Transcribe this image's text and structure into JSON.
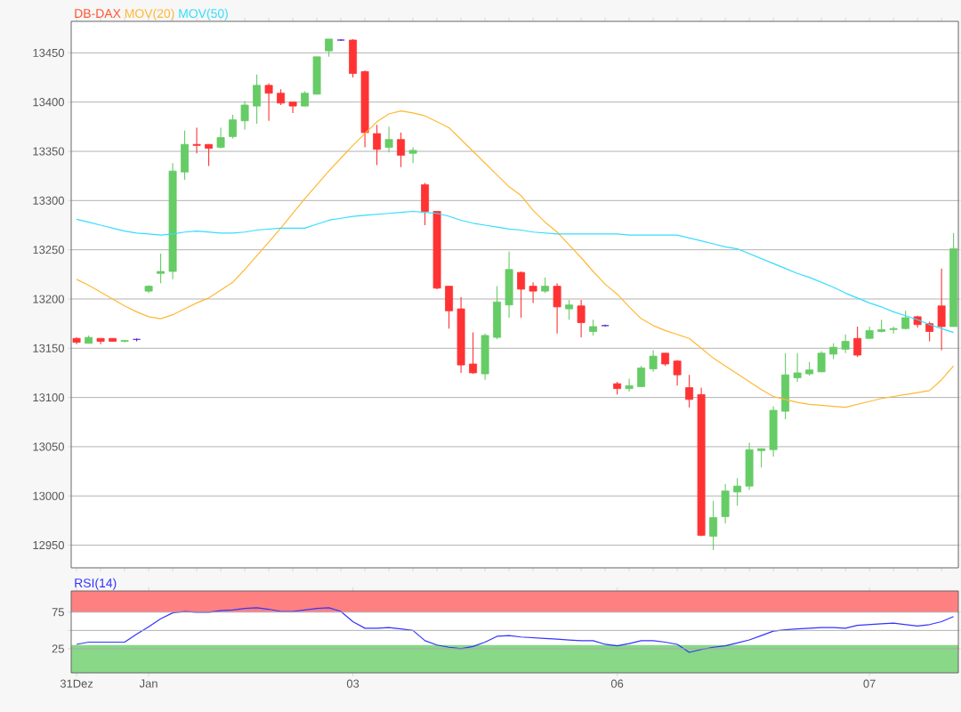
{
  "chart_data": [
    {
      "type": "candlestick",
      "legend": "top left",
      "grid": "y",
      "categories": [
        null,
        null,
        null,
        null,
        null,
        null,
        null,
        null,
        null,
        null,
        null,
        null,
        null,
        null,
        null,
        null,
        null,
        null,
        null,
        null,
        null,
        null,
        null,
        null,
        null,
        null,
        null,
        null,
        null,
        null,
        null,
        null,
        null,
        null,
        null,
        null,
        null,
        null,
        null,
        null,
        null,
        null,
        null,
        null,
        null,
        null,
        null,
        null,
        null,
        null,
        null,
        null,
        null,
        null,
        null,
        null,
        null,
        null,
        null,
        null,
        null,
        null,
        null,
        null,
        null,
        null,
        null,
        null,
        null,
        null,
        null,
        null,
        null,
        null
      ],
      "ylim": [
        12927,
        13482
      ],
      "yticks": [
        12950,
        13000,
        13050,
        13100,
        13150,
        13200,
        13250,
        13300,
        13350,
        13400,
        13450
      ],
      "series": [
        {
          "name": "DB-DAX",
          "type": "candlestick",
          "color": "#ff5533",
          "ohlc": [
            [
              13160,
              13161,
              13154,
              13156
            ],
            [
              13155,
              13163,
              13155,
              13161
            ],
            [
              13160,
              13160,
              13154,
              13157
            ],
            [
              13160,
              13160,
              13157,
              13157
            ],
            [
              13157,
              13158,
              13156,
              13158
            ],
            [
              13159,
              13160,
              13157,
              13159
            ],
            [
              13208,
              13214,
              13206,
              13213
            ],
            [
              13226,
              13246,
              13216,
              13228
            ],
            [
              13228,
              13338,
              13220,
              13330
            ],
            [
              13329,
              13371,
              13321,
              13357
            ],
            [
              13357,
              13374,
              13348,
              13356
            ],
            [
              13357,
              13357,
              13335,
              13353
            ],
            [
              13354,
              13374,
              13353,
              13364
            ],
            [
              13365,
              13387,
              13363,
              13382
            ],
            [
              13381,
              13401,
              13372,
              13397
            ],
            [
              13396,
              13428,
              13378,
              13417
            ],
            [
              13417,
              13419,
              13381,
              13409
            ],
            [
              13409,
              13413,
              13397,
              13399
            ],
            [
              13400,
              13400,
              13389,
              13396
            ],
            [
              13396,
              13411,
              13396,
              13409
            ],
            [
              13408,
              13446,
              13408,
              13446
            ],
            [
              13452,
              13464,
              13446,
              13464
            ],
            [
              13463,
              13464,
              13462,
              13463
            ],
            [
              13463,
              13464,
              13425,
              13429
            ],
            [
              13431,
              13432,
              13354,
              13369
            ],
            [
              13368,
              13377,
              13336,
              13352
            ],
            [
              13354,
              13375,
              13349,
              13362
            ],
            [
              13362,
              13369,
              13334,
              13346
            ],
            [
              13348,
              13354,
              13338,
              13351
            ],
            [
              13316,
              13318,
              13275,
              13289
            ],
            [
              13289,
              13289,
              13210,
              13211
            ],
            [
              13213,
              13213,
              13170,
              13188
            ],
            [
              13190,
              13202,
              13125,
              13133
            ],
            [
              13134,
              13166,
              13124,
              13125
            ],
            [
              13124,
              13165,
              13118,
              13163
            ],
            [
              13161,
              13213,
              13159,
              13197
            ],
            [
              13194,
              13248,
              13181,
              13230
            ],
            [
              13227,
              13228,
              13181,
              13210
            ],
            [
              13213,
              13217,
              13196,
              13208
            ],
            [
              13208,
              13222,
              13206,
              13213
            ],
            [
              13213,
              13216,
              13165,
              13192
            ],
            [
              13190,
              13199,
              13179,
              13194
            ],
            [
              13193,
              13199,
              13161,
              13176
            ],
            [
              13167,
              13179,
              13163,
              13172
            ],
            [
              13173,
              13174,
              13172,
              13173
            ],
            [
              13114,
              13116,
              13103,
              13109
            ],
            [
              13109,
              13119,
              13106,
              13112
            ],
            [
              13111,
              13132,
              13111,
              13130
            ],
            [
              13129,
              13148,
              13126,
              13142
            ],
            [
              13145,
              13145,
              13132,
              13134
            ],
            [
              13137,
              13138,
              13112,
              13123
            ],
            [
              13110,
              13123,
              13090,
              13098
            ],
            [
              13103,
              13110,
              12959,
              12960
            ],
            [
              12959,
              12995,
              12945,
              12978
            ],
            [
              12979,
              13012,
              12972,
              13005
            ],
            [
              13004,
              13018,
              12990,
              13010
            ],
            [
              13010,
              13054,
              13006,
              13047
            ],
            [
              13046,
              13048,
              13029,
              13048
            ],
            [
              13047,
              13091,
              13040,
              13087
            ],
            [
              13086,
              13145,
              13078,
              13123
            ],
            [
              13120,
              13145,
              13116,
              13125
            ],
            [
              13124,
              13136,
              13122,
              13128
            ],
            [
              13126,
              13147,
              13126,
              13145
            ],
            [
              13144,
              13155,
              13139,
              13151
            ],
            [
              13149,
              13164,
              13145,
              13157
            ],
            [
              13160,
              13172,
              13141,
              13143
            ],
            [
              13160,
              13172,
              13160,
              13168
            ],
            [
              13167,
              13179,
              13166,
              13169
            ],
            [
              13169,
              13172,
              13165,
              13170
            ],
            [
              13170,
              13188,
              13169,
              13181
            ],
            [
              13182,
              13183,
              13171,
              13174
            ],
            [
              13175,
              13177,
              13157,
              13167
            ],
            [
              13193,
              13231,
              13148,
              13172
            ],
            [
              13172,
              13267,
              13172,
              13251
            ]
          ],
          "colors": [
            "#ff3333",
            "#66cc66",
            "#ff3333",
            "#ff3333",
            "#66cc66",
            "#5522cc",
            "#66cc66",
            "#66cc66",
            "#66cc66",
            "#66cc66",
            "#ff3333",
            "#ff3333",
            "#66cc66",
            "#66cc66",
            "#66cc66",
            "#66cc66",
            "#ff3333",
            "#ff3333",
            "#ff3333",
            "#66cc66",
            "#66cc66",
            "#66cc66",
            "#5522cc",
            "#ff3333",
            "#ff3333",
            "#ff3333",
            "#66cc66",
            "#ff3333",
            "#66cc66",
            "#ff3333",
            "#ff3333",
            "#ff3333",
            "#ff3333",
            "#ff3333",
            "#66cc66",
            "#66cc66",
            "#66cc66",
            "#ff3333",
            "#ff3333",
            "#66cc66",
            "#ff3333",
            "#66cc66",
            "#ff3333",
            "#66cc66",
            "#5522cc",
            "#ff3333",
            "#66cc66",
            "#66cc66",
            "#66cc66",
            "#ff3333",
            "#ff3333",
            "#ff3333",
            "#ff3333",
            "#66cc66",
            "#66cc66",
            "#66cc66",
            "#66cc66",
            "#66cc66",
            "#66cc66",
            "#66cc66",
            "#66cc66",
            "#66cc66",
            "#66cc66",
            "#66cc66",
            "#66cc66",
            "#ff3333",
            "#66cc66",
            "#66cc66",
            "#66cc66",
            "#66cc66",
            "#ff3333",
            "#ff3333",
            "#ff3333",
            "#66cc66"
          ]
        },
        {
          "name": "MOV(20)",
          "type": "line",
          "color": "#ffb833",
          "values": [
            13220,
            13214,
            13207,
            13200,
            13193,
            13187,
            13182,
            13180,
            13184,
            13190,
            13196,
            13201,
            13209,
            13217,
            13230,
            13244,
            13258,
            13272,
            13287,
            13302,
            13316,
            13330,
            13343,
            13356,
            13368,
            13380,
            13388,
            13391,
            13389,
            13386,
            13380,
            13374,
            13362,
            13350,
            13338,
            13326,
            13314,
            13305,
            13290,
            13278,
            13268,
            13255,
            13242,
            13228,
            13215,
            13205,
            13192,
            13180,
            13173,
            13168,
            13164,
            13160,
            13150,
            13140,
            13132,
            13124,
            13116,
            13108,
            13101,
            13098,
            13095,
            13093,
            13092,
            13091,
            13090,
            13093,
            13096,
            13099,
            13101,
            13103,
            13105,
            13107,
            13118,
            13132
          ]
        },
        {
          "name": "MOV(50)",
          "type": "line",
          "color": "#33ddff",
          "values": [
            13281,
            13278,
            13275,
            13272,
            13269,
            13267,
            13266,
            13265,
            13266,
            13268,
            13269,
            13268,
            13267,
            13267,
            13268,
            13270,
            13271,
            13272,
            13272,
            13272,
            13276,
            13280,
            13282,
            13284,
            13285,
            13286,
            13287,
            13288,
            13289,
            13288,
            13287,
            13284,
            13280,
            13277,
            13275,
            13273,
            13271,
            13270,
            13268,
            13267,
            13266,
            13266,
            13266,
            13266,
            13266,
            13266,
            13265,
            13265,
            13265,
            13265,
            13265,
            13262,
            13259,
            13256,
            13253,
            13251,
            13246,
            13241,
            13236,
            13231,
            13226,
            13222,
            13217,
            13212,
            13206,
            13201,
            13196,
            13192,
            13187,
            13183,
            13179,
            13174,
            13170,
            13166
          ]
        }
      ]
    },
    {
      "type": "line",
      "legend": "top left",
      "grid": "y",
      "categories": [
        "31Dez",
        null,
        null,
        null,
        null,
        null,
        "Jan",
        null,
        null,
        null,
        null,
        null,
        null,
        null,
        null,
        null,
        null,
        null,
        null,
        null,
        null,
        null,
        null,
        "03",
        null,
        null,
        null,
        null,
        null,
        null,
        null,
        null,
        null,
        null,
        null,
        null,
        null,
        null,
        null,
        null,
        null,
        null,
        null,
        null,
        null,
        "06",
        null,
        null,
        null,
        null,
        null,
        null,
        null,
        null,
        null,
        null,
        null,
        null,
        null,
        null,
        null,
        null,
        null,
        null,
        null,
        null,
        "07",
        null,
        null,
        null,
        null,
        null,
        null,
        null
      ],
      "ylim": [
        -8,
        104
      ],
      "yticks": [
        25,
        {
          "value": 50,
          "label": null
        },
        75
      ],
      "bands": [
        {
          "axis": "y",
          "from": 75,
          "to": 104,
          "color": "#ff8080"
        },
        {
          "axis": "y",
          "from": -8,
          "to": 30,
          "color": "#88d888"
        }
      ],
      "series": [
        {
          "name": "RSI(14)",
          "color": "#3333ff",
          "values": [
            31,
            34,
            34,
            34,
            34,
            45,
            55,
            66,
            74,
            76,
            75,
            75,
            77,
            78,
            80,
            81,
            79,
            76,
            76,
            78,
            80,
            81,
            76,
            62,
            53,
            53,
            54,
            52,
            50,
            36,
            30,
            27,
            25,
            28,
            34,
            42,
            43,
            41,
            40,
            39,
            38,
            37,
            36,
            36,
            31,
            29,
            32,
            36,
            36,
            34,
            31,
            20,
            24,
            27,
            29,
            33,
            37,
            43,
            49,
            51,
            52,
            53,
            54,
            54,
            53,
            57,
            58,
            59,
            60,
            58,
            56,
            58,
            62,
            69
          ]
        }
      ]
    }
  ]
}
